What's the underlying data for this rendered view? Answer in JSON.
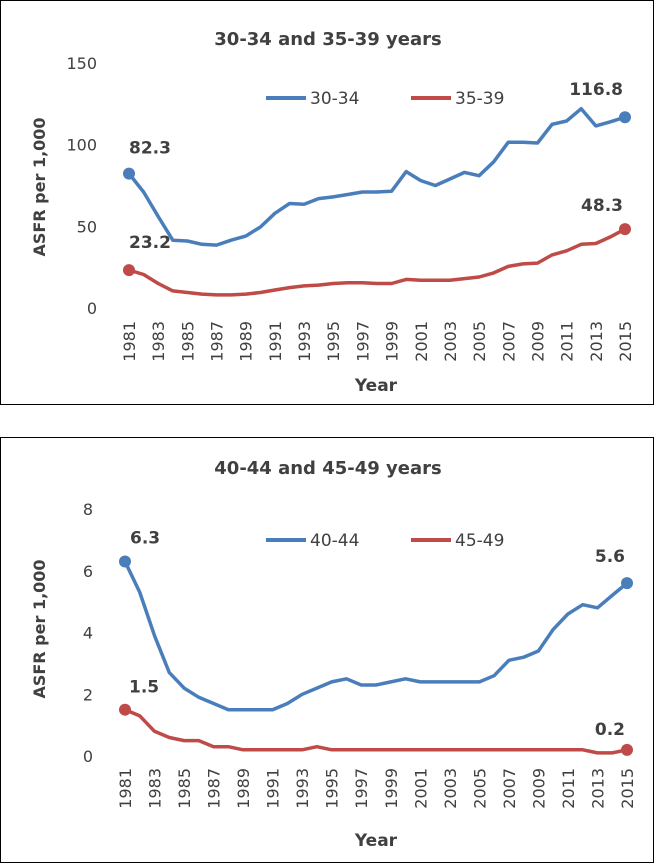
{
  "chart_data": [
    {
      "type": "line",
      "title": "30-34 and 35-39 years",
      "xlabel": "Year",
      "ylabel": "ASFR per 1,000",
      "ylim": [
        0,
        150
      ],
      "yticks": [
        "0",
        "50",
        "100",
        "150"
      ],
      "x": [
        1981,
        1982,
        1983,
        1984,
        1985,
        1986,
        1987,
        1988,
        1989,
        1990,
        1991,
        1992,
        1993,
        1994,
        1995,
        1996,
        1997,
        1998,
        1999,
        2000,
        2001,
        2002,
        2003,
        2004,
        2005,
        2006,
        2007,
        2008,
        2009,
        2010,
        2011,
        2012,
        2013,
        2014,
        2015
      ],
      "xticks": [
        "1981",
        "1983",
        "1985",
        "1987",
        "1989",
        "1991",
        "1993",
        "1995",
        "1997",
        "1999",
        "2001",
        "2003",
        "2005",
        "2007",
        "2009",
        "2011",
        "2013",
        "2015"
      ],
      "series": [
        {
          "name": "30-34",
          "color": "#4a7ebb",
          "values": [
            82.3,
            71,
            56,
            41.5,
            41,
            39,
            38.5,
            41.5,
            44,
            49.5,
            58,
            64,
            63.5,
            67,
            68,
            69.5,
            71,
            71,
            71.5,
            83.5,
            78,
            75,
            79,
            83,
            81,
            89.5,
            101.5,
            101.5,
            101,
            112.5,
            114.5,
            122,
            111.5,
            114,
            116.8
          ],
          "start_label": "82.3",
          "end_label": "116.8"
        },
        {
          "name": "35-39",
          "color": "#be4b48",
          "values": [
            23.2,
            20.5,
            15,
            10.5,
            9.5,
            8.5,
            8,
            8,
            8.5,
            9.5,
            11,
            12.5,
            13.5,
            14,
            15,
            15.5,
            15.5,
            15,
            15,
            17.5,
            17,
            17,
            17,
            18,
            19,
            21.5,
            25.5,
            27,
            27.5,
            32.5,
            35,
            39,
            39.5,
            43.5,
            48.3
          ],
          "start_label": "23.2",
          "end_label": "48.3"
        }
      ]
    },
    {
      "type": "line",
      "title": "40-44 and 45-49 years",
      "xlabel": "Year",
      "ylabel": "ASFR per 1,000",
      "ylim": [
        0,
        8
      ],
      "yticks": [
        "0",
        "2",
        "4",
        "6",
        "8"
      ],
      "x": [
        1981,
        1982,
        1983,
        1984,
        1985,
        1986,
        1987,
        1988,
        1989,
        1990,
        1991,
        1992,
        1993,
        1994,
        1995,
        1996,
        1997,
        1998,
        1999,
        2000,
        2001,
        2002,
        2003,
        2004,
        2005,
        2006,
        2007,
        2008,
        2009,
        2010,
        2011,
        2012,
        2013,
        2014,
        2015
      ],
      "xticks": [
        "1981",
        "1983",
        "1985",
        "1987",
        "1989",
        "1991",
        "1993",
        "1995",
        "1997",
        "1999",
        "2001",
        "2003",
        "2005",
        "2007",
        "2009",
        "2011",
        "2013",
        "2015"
      ],
      "series": [
        {
          "name": "40-44",
          "color": "#4a7ebb",
          "values": [
            6.3,
            5.3,
            3.9,
            2.7,
            2.2,
            1.9,
            1.7,
            1.5,
            1.5,
            1.5,
            1.5,
            1.7,
            2.0,
            2.2,
            2.4,
            2.5,
            2.3,
            2.3,
            2.4,
            2.5,
            2.4,
            2.4,
            2.4,
            2.4,
            2.4,
            2.6,
            3.1,
            3.2,
            3.4,
            4.1,
            4.6,
            4.9,
            4.8,
            5.2,
            5.6
          ],
          "start_label": "6.3",
          "end_label": "5.6"
        },
        {
          "name": "45-49",
          "color": "#be4b48",
          "values": [
            1.5,
            1.3,
            0.8,
            0.6,
            0.5,
            0.5,
            0.3,
            0.3,
            0.2,
            0.2,
            0.2,
            0.2,
            0.2,
            0.3,
            0.2,
            0.2,
            0.2,
            0.2,
            0.2,
            0.2,
            0.2,
            0.2,
            0.2,
            0.2,
            0.2,
            0.2,
            0.2,
            0.2,
            0.2,
            0.2,
            0.2,
            0.2,
            0.1,
            0.1,
            0.2
          ],
          "start_label": "1.5",
          "end_label": "0.2"
        }
      ]
    }
  ]
}
